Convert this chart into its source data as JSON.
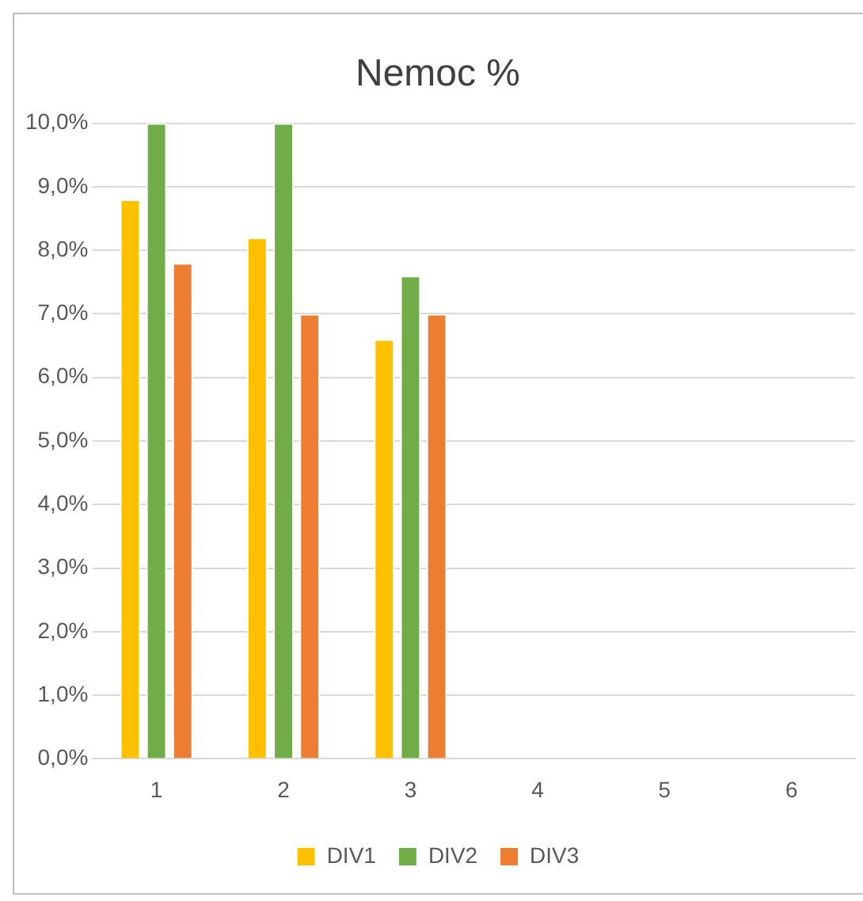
{
  "chart_data": {
    "type": "bar",
    "title": "Nemoc %",
    "categories": [
      "1",
      "2",
      "3",
      "4",
      "5",
      "6"
    ],
    "series": [
      {
        "name": "DIV1",
        "color": "#ffc000",
        "values": [
          8.8,
          8.2,
          6.6,
          null,
          null,
          null
        ]
      },
      {
        "name": "DIV2",
        "color": "#70ad47",
        "values": [
          10.0,
          10.0,
          7.6,
          null,
          null,
          null
        ]
      },
      {
        "name": "DIV3",
        "color": "#ed7d31",
        "values": [
          7.8,
          7.0,
          7.0,
          null,
          null,
          null
        ]
      }
    ],
    "ylim": [
      0,
      10
    ],
    "yticks": [
      {
        "value": 0,
        "label": "0,0%"
      },
      {
        "value": 1,
        "label": "1,0%"
      },
      {
        "value": 2,
        "label": "2,0%"
      },
      {
        "value": 3,
        "label": "3,0%"
      },
      {
        "value": 4,
        "label": "4,0%"
      },
      {
        "value": 5,
        "label": "5,0%"
      },
      {
        "value": 6,
        "label": "6,0%"
      },
      {
        "value": 7,
        "label": "7,0%"
      },
      {
        "value": 8,
        "label": "8,0%"
      },
      {
        "value": 9,
        "label": "9,0%"
      },
      {
        "value": 10,
        "label": "10,0%"
      }
    ],
    "grid": "y",
    "legend": "bottom"
  }
}
